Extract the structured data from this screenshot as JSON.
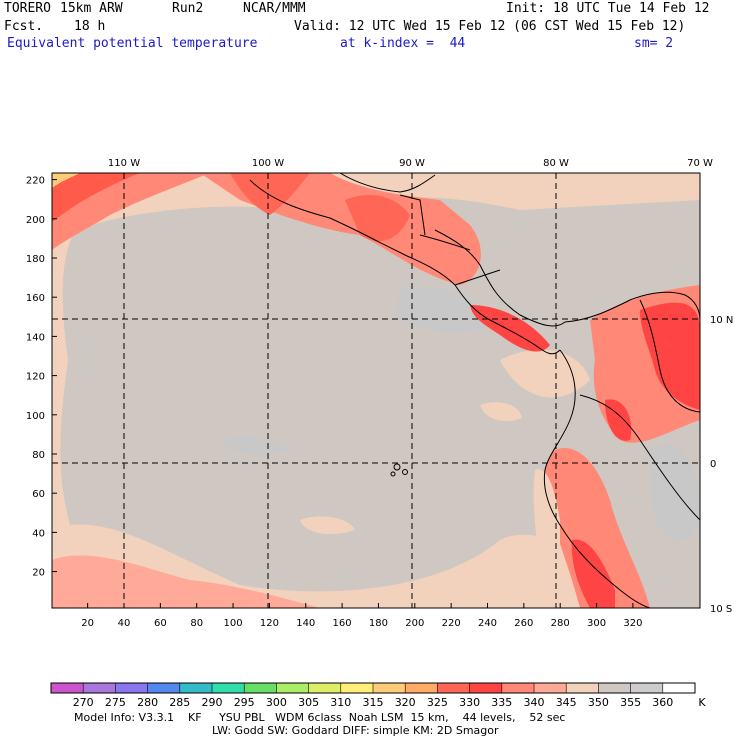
{
  "header": {
    "model": "TORERO",
    "resolution": "15km ARW",
    "run": "Run2",
    "org": "NCAR/MMM",
    "init": "Init: 18 UTC Tue 14 Feb 12",
    "fcst_label": "Fcst.",
    "fcst_value": "18 h",
    "valid": "Valid: 12 UTC Wed 15 Feb 12 (06 CST Wed 15 Feb 12)",
    "field": "Equivalent potential temperature",
    "level": "at k-index =  44",
    "smoothing": "sm= 2"
  },
  "map": {
    "x_grid_labels": [
      "20",
      "40",
      "60",
      "80",
      "100",
      "120",
      "140",
      "160",
      "180",
      "200",
      "220",
      "240",
      "260",
      "280",
      "300",
      "320"
    ],
    "y_grid_labels": [
      "20",
      "40",
      "60",
      "80",
      "100",
      "120",
      "140",
      "160",
      "180",
      "200",
      "220"
    ],
    "lon_labels": [
      "110 W",
      "100 W",
      "90 W",
      "80 W",
      "70 W"
    ],
    "lat_labels": [
      "10 N",
      "0",
      "10 S"
    ]
  },
  "colorbar": {
    "unit": "K",
    "levels": [
      "270",
      "275",
      "280",
      "285",
      "290",
      "295",
      "300",
      "305",
      "310",
      "315",
      "320",
      "325",
      "330",
      "335",
      "340",
      "345",
      "350",
      "355",
      "360"
    ],
    "colors": [
      "#cc55cc",
      "#aa77dd",
      "#8877ee",
      "#5588ee",
      "#33bbcc",
      "#33ddaa",
      "#66dd66",
      "#aaee66",
      "#ddee66",
      "#ffee77",
      "#ffcc77",
      "#ffaa66",
      "#ff6655",
      "#ff4444",
      "#ff8877",
      "#ffaa99",
      "#f2d2bc",
      "#cfc7c1",
      "#cccccc",
      "#ffffff"
    ]
  },
  "footer": {
    "line1": "Model Info: V3.3.1    KF     YSU PBL   WDM 6class  Noah LSM  15 km,    44 levels,    52 sec",
    "line2": "LW: Godd SW: Goddard DIFF: simple KM: 2D Smagor"
  }
}
